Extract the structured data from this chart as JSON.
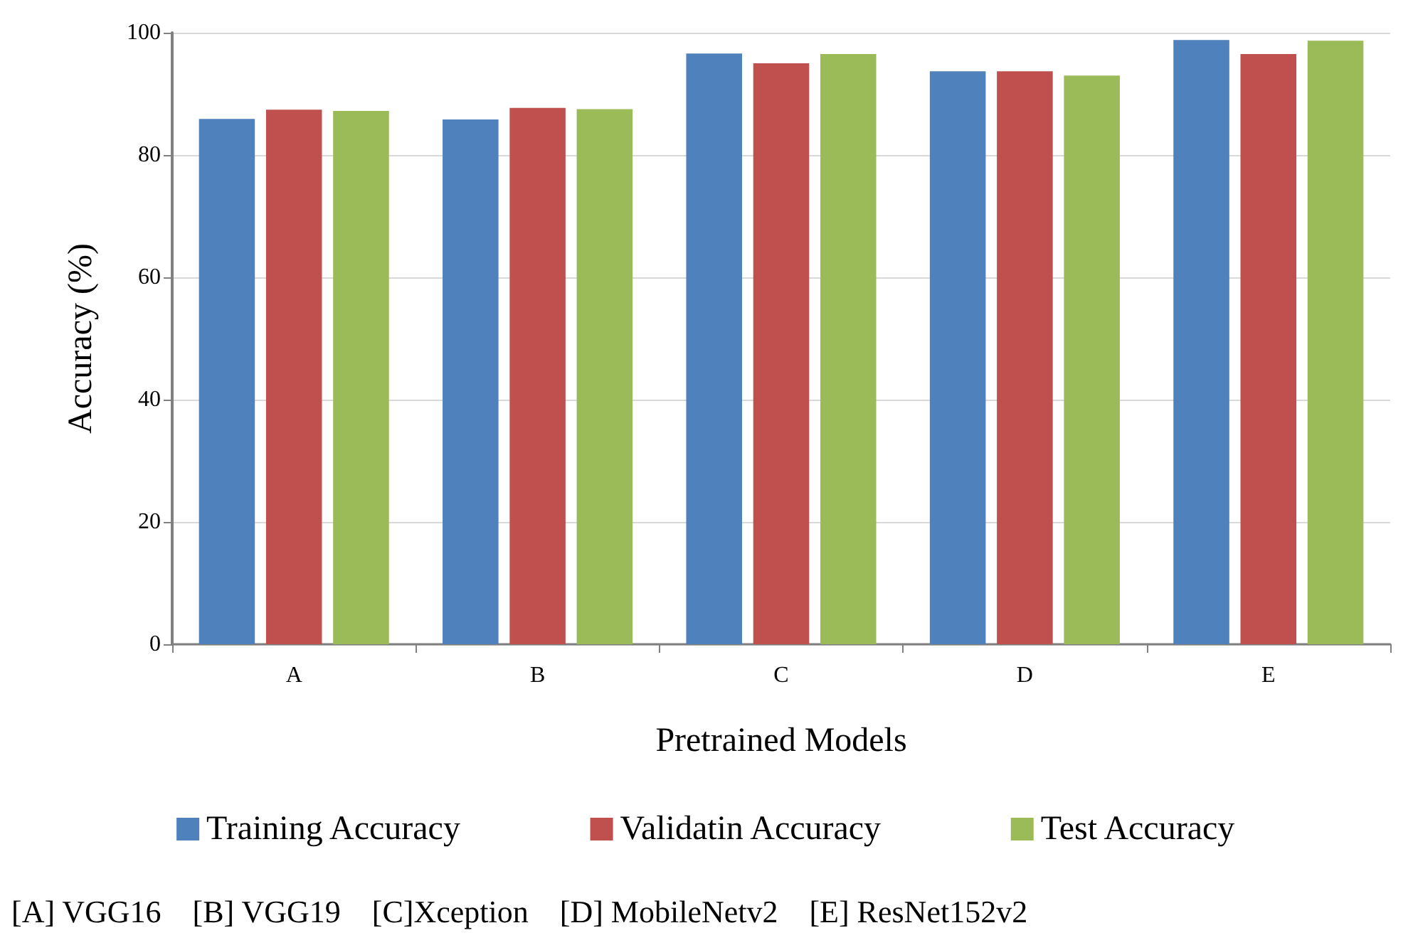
{
  "chart_data": {
    "type": "bar",
    "xlabel": "Pretrained Models",
    "ylabel": "Accuracy (%)",
    "categories": [
      "A",
      "B",
      "C",
      "D",
      "E"
    ],
    "series": [
      {
        "name": "Training Accuracy",
        "color": "#4f81bd",
        "values": [
          85.9,
          85.8,
          96.6,
          93.7,
          98.8
        ]
      },
      {
        "name": "Validatin Accuracy",
        "color": "#c0504d",
        "values": [
          87.4,
          87.7,
          95.0,
          93.7,
          96.5
        ]
      },
      {
        "name": "Test Accuracy",
        "color": "#9bbb59",
        "values": [
          87.2,
          87.5,
          96.5,
          93.0,
          98.7
        ]
      }
    ],
    "ylim": [
      0,
      100
    ],
    "yticks": [
      0,
      20,
      40,
      60,
      80,
      100
    ],
    "grid": "y",
    "legend": "bottom",
    "annotations": [
      "[A] VGG16    [B] VGG19    [C]Xception    [D] MobileNetv2    [E] ResNet152v2"
    ]
  }
}
